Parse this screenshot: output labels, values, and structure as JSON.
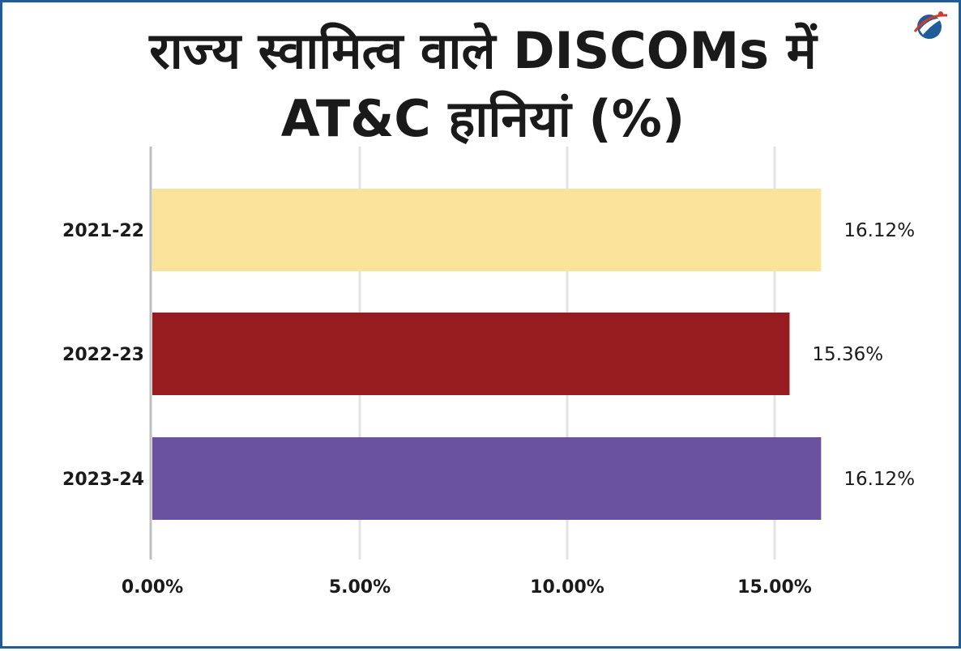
{
  "title_lines": [
    "राज्य स्वामित्व वाले DISCOMs में",
    "AT&C हानियां (%)"
  ],
  "logo_icon": "globe-logo-icon",
  "chart_data": {
    "type": "bar",
    "orientation": "horizontal",
    "title": "राज्य स्वामित्व वाले DISCOMs में AT&C हानियां (%)",
    "categories": [
      "2021-22",
      "2022-23",
      "2023-24"
    ],
    "values": [
      16.12,
      15.36,
      16.12
    ],
    "value_labels": [
      "16.12%",
      "15.36%",
      "16.12%"
    ],
    "colors": [
      "#f9e39b",
      "#961c20",
      "#6a52a1"
    ],
    "xlim": [
      0,
      17.5
    ],
    "xticks": [
      0,
      5,
      10,
      15
    ],
    "xtick_labels": [
      "0.00%",
      "5.00%",
      "10.00%",
      "15.00%"
    ],
    "xlabel": "",
    "ylabel": "",
    "grid": true,
    "legend": "none"
  }
}
